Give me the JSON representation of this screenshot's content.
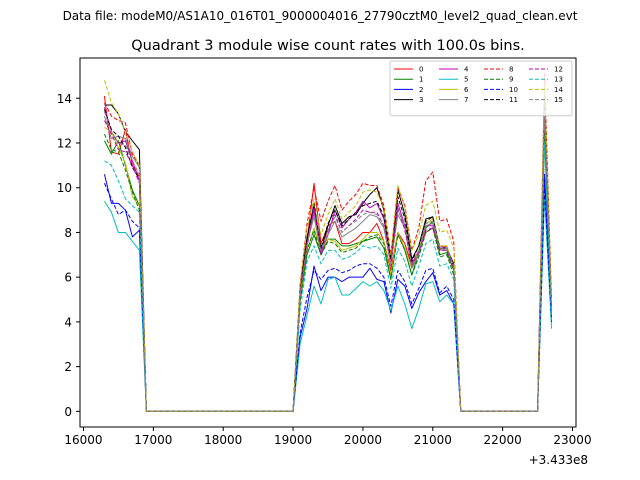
{
  "suptitle": "Data file: modeM0/AS1A10_016T01_9000004016_27790cztM0_level2_quad_clean.evt",
  "chart_data": {
    "type": "line",
    "title": "Quadrant 3 module wise count rates with 100.0s bins.",
    "xlabel": "",
    "ylabel": "",
    "x_offset_label": "+3.433e8",
    "xlim": [
      15950,
      23050
    ],
    "ylim": [
      -0.7,
      15.8
    ],
    "xticks": [
      16000,
      17000,
      18000,
      19000,
      20000,
      21000,
      22000,
      23000
    ],
    "yticks": [
      0,
      2,
      4,
      6,
      8,
      10,
      12,
      14
    ],
    "grid": false,
    "legend_position": "top-right",
    "legend_columns": 4,
    "x": [
      16300,
      16400,
      16500,
      16600,
      16700,
      16800,
      16900,
      17000,
      17100,
      17200,
      17300,
      17400,
      17500,
      17600,
      17700,
      17800,
      17900,
      18000,
      18100,
      18200,
      18300,
      18400,
      18500,
      18600,
      18700,
      18800,
      18900,
      19000,
      19100,
      19200,
      19300,
      19400,
      19500,
      19600,
      19700,
      19800,
      19900,
      20000,
      20100,
      20200,
      20300,
      20400,
      20500,
      20600,
      20700,
      20800,
      20900,
      21000,
      21100,
      21200,
      21300,
      21400,
      21500,
      21600,
      21700,
      21800,
      21900,
      22000,
      22100,
      22200,
      22300,
      22400,
      22500,
      22600,
      22700
    ],
    "series": [
      {
        "name": "0",
        "color": "#ff0000",
        "dash": "solid",
        "values": [
          14.1,
          11.6,
          11.5,
          12.6,
          11.0,
          10.5,
          0.0,
          0.0,
          0.0,
          0.0,
          0.0,
          0.0,
          0.0,
          0.0,
          0.0,
          0.0,
          0.0,
          0.0,
          0.0,
          0.0,
          0.0,
          0.0,
          0.0,
          0.0,
          0.0,
          0.0,
          0.0,
          0.0,
          5.2,
          7.6,
          10.2,
          7.5,
          8.3,
          8.5,
          7.5,
          7.5,
          7.7,
          8.0,
          8.0,
          8.4,
          7.6,
          6.3,
          8.0,
          7.5,
          6.5,
          7.2,
          8.0,
          8.2,
          7.2,
          7.4,
          6.4,
          0.0,
          0.0,
          0.0,
          0.0,
          0.0,
          0.0,
          0.0,
          0.0,
          0.0,
          0.0,
          0.0,
          0.0,
          13.0,
          4.5
        ]
      },
      {
        "name": "1",
        "color": "#008000",
        "dash": "solid",
        "values": [
          12.1,
          11.5,
          12.1,
          11.0,
          9.9,
          9.2,
          0.0,
          0.0,
          0.0,
          0.0,
          0.0,
          0.0,
          0.0,
          0.0,
          0.0,
          0.0,
          0.0,
          0.0,
          0.0,
          0.0,
          0.0,
          0.0,
          0.0,
          0.0,
          0.0,
          0.0,
          0.0,
          0.0,
          4.9,
          7.0,
          7.9,
          7.0,
          7.7,
          7.7,
          7.4,
          7.4,
          7.5,
          7.6,
          7.7,
          7.8,
          7.3,
          5.9,
          8.0,
          7.2,
          6.1,
          7.1,
          8.2,
          8.5,
          7.0,
          7.1,
          6.3,
          0.0,
          0.0,
          0.0,
          0.0,
          0.0,
          0.0,
          0.0,
          0.0,
          0.0,
          0.0,
          0.0,
          0.0,
          12.4,
          4.3
        ]
      },
      {
        "name": "2",
        "color": "#0000ff",
        "dash": "solid",
        "values": [
          10.6,
          9.3,
          9.3,
          9.0,
          7.8,
          8.1,
          0.0,
          0.0,
          0.0,
          0.0,
          0.0,
          0.0,
          0.0,
          0.0,
          0.0,
          0.0,
          0.0,
          0.0,
          0.0,
          0.0,
          0.0,
          0.0,
          0.0,
          0.0,
          0.0,
          0.0,
          0.0,
          0.0,
          3.3,
          4.6,
          6.5,
          5.4,
          6.0,
          6.0,
          5.8,
          6.0,
          6.0,
          6.0,
          6.4,
          5.9,
          5.8,
          4.4,
          5.9,
          5.6,
          4.6,
          5.3,
          5.8,
          6.2,
          5.2,
          5.4,
          4.8,
          0.0,
          0.0,
          0.0,
          0.0,
          0.0,
          0.0,
          0.0,
          0.0,
          0.0,
          0.0,
          0.0,
          0.0,
          10.6,
          4.0
        ]
      },
      {
        "name": "3",
        "color": "#000000",
        "dash": "solid",
        "values": [
          13.7,
          13.7,
          13.3,
          12.5,
          12.1,
          11.7,
          0.0,
          0.0,
          0.0,
          0.0,
          0.0,
          0.0,
          0.0,
          0.0,
          0.0,
          0.0,
          0.0,
          0.0,
          0.0,
          0.0,
          0.0,
          0.0,
          0.0,
          0.0,
          0.0,
          0.0,
          0.0,
          0.0,
          5.5,
          7.8,
          9.2,
          7.2,
          8.3,
          9.2,
          8.4,
          8.7,
          8.8,
          9.3,
          9.7,
          10.0,
          9.0,
          6.9,
          9.9,
          8.8,
          6.8,
          7.4,
          8.6,
          8.7,
          7.3,
          7.3,
          6.6,
          0.0,
          0.0,
          0.0,
          0.0,
          0.0,
          0.0,
          0.0,
          0.0,
          0.0,
          0.0,
          0.0,
          0.0,
          14.1,
          4.7
        ]
      },
      {
        "name": "4",
        "color": "#bf00bf",
        "dash": "solid",
        "values": [
          13.6,
          12.5,
          12.0,
          12.1,
          11.2,
          10.3,
          0.0,
          0.0,
          0.0,
          0.0,
          0.0,
          0.0,
          0.0,
          0.0,
          0.0,
          0.0,
          0.0,
          0.0,
          0.0,
          0.0,
          0.0,
          0.0,
          0.0,
          0.0,
          0.0,
          0.0,
          0.0,
          0.0,
          5.4,
          7.4,
          9.0,
          7.0,
          7.9,
          9.0,
          8.2,
          8.6,
          8.9,
          9.4,
          9.1,
          9.3,
          8.6,
          6.7,
          9.3,
          8.3,
          6.6,
          7.2,
          8.3,
          8.3,
          7.4,
          7.3,
          6.5,
          0.0,
          0.0,
          0.0,
          0.0,
          0.0,
          0.0,
          0.0,
          0.0,
          0.0,
          0.0,
          0.0,
          0.0,
          13.8,
          4.6
        ]
      },
      {
        "name": "5",
        "color": "#00bfbf",
        "dash": "solid",
        "values": [
          9.4,
          8.9,
          8.0,
          8.0,
          7.6,
          7.2,
          0.0,
          0.0,
          0.0,
          0.0,
          0.0,
          0.0,
          0.0,
          0.0,
          0.0,
          0.0,
          0.0,
          0.0,
          0.0,
          0.0,
          0.0,
          0.0,
          0.0,
          0.0,
          0.0,
          0.0,
          0.0,
          0.0,
          3.0,
          4.3,
          5.6,
          4.8,
          5.9,
          6.0,
          5.2,
          5.2,
          5.5,
          5.8,
          5.6,
          5.8,
          5.4,
          4.5,
          5.6,
          4.8,
          3.7,
          4.6,
          5.7,
          5.8,
          4.9,
          5.2,
          4.8,
          0.0,
          0.0,
          0.0,
          0.0,
          0.0,
          0.0,
          0.0,
          0.0,
          0.0,
          0.0,
          0.0,
          0.0,
          9.6,
          3.7
        ]
      },
      {
        "name": "6",
        "color": "#bfbf00",
        "dash": "solid",
        "values": [
          12.7,
          12.5,
          11.8,
          11.1,
          9.6,
          9.2,
          0.0,
          0.0,
          0.0,
          0.0,
          0.0,
          0.0,
          0.0,
          0.0,
          0.0,
          0.0,
          0.0,
          0.0,
          0.0,
          0.0,
          0.0,
          0.0,
          0.0,
          0.0,
          0.0,
          0.0,
          0.0,
          0.0,
          5.1,
          7.2,
          8.2,
          7.2,
          7.7,
          7.6,
          7.2,
          7.3,
          7.4,
          7.7,
          8.0,
          8.0,
          7.6,
          6.1,
          8.0,
          7.3,
          6.4,
          7.2,
          8.4,
          8.6,
          7.4,
          7.4,
          6.4,
          0.0,
          0.0,
          0.0,
          0.0,
          0.0,
          0.0,
          0.0,
          0.0,
          0.0,
          0.0,
          0.0,
          0.0,
          12.8,
          4.4
        ]
      },
      {
        "name": "7",
        "color": "#808080",
        "dash": "solid",
        "values": [
          13.2,
          12.2,
          12.3,
          12.2,
          11.4,
          10.9,
          0.0,
          0.0,
          0.0,
          0.0,
          0.0,
          0.0,
          0.0,
          0.0,
          0.0,
          0.0,
          0.0,
          0.0,
          0.0,
          0.0,
          0.0,
          0.0,
          0.0,
          0.0,
          0.0,
          0.0,
          0.0,
          0.0,
          5.2,
          7.5,
          8.7,
          7.1,
          7.9,
          8.5,
          7.8,
          8.0,
          8.2,
          8.5,
          8.8,
          8.7,
          8.2,
          6.6,
          8.8,
          8.2,
          6.4,
          7.0,
          8.3,
          8.4,
          7.3,
          7.2,
          6.5,
          0.0,
          0.0,
          0.0,
          0.0,
          0.0,
          0.0,
          0.0,
          0.0,
          0.0,
          0.0,
          0.0,
          0.0,
          13.2,
          4.4
        ]
      },
      {
        "name": "8",
        "color": "#ff0000",
        "dash": "dashed",
        "values": [
          13.8,
          13.2,
          13.0,
          12.9,
          11.5,
          11.0,
          0.0,
          0.0,
          0.0,
          0.0,
          0.0,
          0.0,
          0.0,
          0.0,
          0.0,
          0.0,
          0.0,
          0.0,
          0.0,
          0.0,
          0.0,
          0.0,
          0.0,
          0.0,
          0.0,
          0.0,
          0.0,
          0.0,
          5.6,
          8.4,
          10.0,
          8.5,
          9.4,
          10.1,
          9.0,
          9.4,
          9.7,
          10.2,
          10.1,
          10.1,
          9.2,
          7.0,
          10.0,
          9.2,
          7.2,
          8.2,
          10.3,
          10.7,
          8.5,
          8.6,
          7.6,
          0.0,
          0.0,
          0.0,
          0.0,
          0.0,
          0.0,
          0.0,
          0.0,
          0.0,
          0.0,
          0.0,
          0.0,
          15.1,
          5.0
        ]
      },
      {
        "name": "9",
        "color": "#008000",
        "dash": "dashed",
        "values": [
          12.4,
          11.7,
          11.6,
          10.8,
          9.8,
          9.0,
          0.0,
          0.0,
          0.0,
          0.0,
          0.0,
          0.0,
          0.0,
          0.0,
          0.0,
          0.0,
          0.0,
          0.0,
          0.0,
          0.0,
          0.0,
          0.0,
          0.0,
          0.0,
          0.0,
          0.0,
          0.0,
          0.0,
          4.9,
          7.2,
          8.1,
          7.0,
          7.6,
          7.5,
          7.1,
          7.2,
          7.3,
          7.6,
          7.8,
          7.9,
          7.5,
          5.9,
          7.9,
          7.2,
          6.1,
          6.9,
          8.0,
          8.2,
          6.9,
          7.0,
          6.1,
          0.0,
          0.0,
          0.0,
          0.0,
          0.0,
          0.0,
          0.0,
          0.0,
          0.0,
          0.0,
          0.0,
          0.0,
          12.5,
          4.2
        ]
      },
      {
        "name": "10",
        "color": "#0000ff",
        "dash": "dashed",
        "values": [
          10.2,
          9.5,
          8.8,
          9.0,
          8.5,
          8.2,
          0.0,
          0.0,
          0.0,
          0.0,
          0.0,
          0.0,
          0.0,
          0.0,
          0.0,
          0.0,
          0.0,
          0.0,
          0.0,
          0.0,
          0.0,
          0.0,
          0.0,
          0.0,
          0.0,
          0.0,
          0.0,
          0.0,
          3.5,
          5.1,
          6.3,
          5.9,
          6.3,
          6.4,
          6.2,
          6.3,
          6.5,
          6.6,
          6.6,
          6.4,
          6.0,
          4.7,
          6.3,
          5.8,
          4.8,
          5.5,
          6.3,
          6.4,
          5.3,
          5.6,
          5.0,
          0.0,
          0.0,
          0.0,
          0.0,
          0.0,
          0.0,
          0.0,
          0.0,
          0.0,
          0.0,
          0.0,
          0.0,
          10.1,
          4.0
        ]
      },
      {
        "name": "11",
        "color": "#000000",
        "dash": "dashed",
        "values": [
          13.5,
          12.6,
          12.3,
          11.8,
          10.9,
          10.4,
          0.0,
          0.0,
          0.0,
          0.0,
          0.0,
          0.0,
          0.0,
          0.0,
          0.0,
          0.0,
          0.0,
          0.0,
          0.0,
          0.0,
          0.0,
          0.0,
          0.0,
          0.0,
          0.0,
          0.0,
          0.0,
          0.0,
          5.3,
          7.7,
          9.3,
          7.3,
          8.4,
          9.0,
          8.3,
          8.6,
          8.9,
          9.2,
          9.3,
          9.4,
          8.7,
          6.8,
          9.6,
          8.6,
          6.7,
          7.4,
          8.5,
          8.7,
          7.3,
          7.3,
          6.5,
          0.0,
          0.0,
          0.0,
          0.0,
          0.0,
          0.0,
          0.0,
          0.0,
          0.0,
          0.0,
          0.0,
          0.0,
          13.9,
          4.5
        ]
      },
      {
        "name": "12",
        "color": "#bf00bf",
        "dash": "dashed",
        "values": [
          13.0,
          12.4,
          11.7,
          11.6,
          11.0,
          10.2,
          0.0,
          0.0,
          0.0,
          0.0,
          0.0,
          0.0,
          0.0,
          0.0,
          0.0,
          0.0,
          0.0,
          0.0,
          0.0,
          0.0,
          0.0,
          0.0,
          0.0,
          0.0,
          0.0,
          0.0,
          0.0,
          0.0,
          5.3,
          7.4,
          9.1,
          7.1,
          8.1,
          8.8,
          8.0,
          8.3,
          8.6,
          9.0,
          8.9,
          8.9,
          8.3,
          6.5,
          9.1,
          8.1,
          6.5,
          7.1,
          8.1,
          8.2,
          7.2,
          7.2,
          6.4,
          0.0,
          0.0,
          0.0,
          0.0,
          0.0,
          0.0,
          0.0,
          0.0,
          0.0,
          0.0,
          0.0,
          0.0,
          13.5,
          4.5
        ]
      },
      {
        "name": "13",
        "color": "#00bfbf",
        "dash": "dashed",
        "values": [
          11.2,
          11.0,
          10.3,
          9.5,
          9.2,
          8.9,
          0.0,
          0.0,
          0.0,
          0.0,
          0.0,
          0.0,
          0.0,
          0.0,
          0.0,
          0.0,
          0.0,
          0.0,
          0.0,
          0.0,
          0.0,
          0.0,
          0.0,
          0.0,
          0.0,
          0.0,
          0.0,
          0.0,
          4.5,
          6.7,
          7.4,
          6.6,
          7.2,
          7.2,
          6.8,
          6.9,
          7.1,
          7.4,
          7.3,
          7.4,
          7.0,
          5.5,
          7.3,
          6.7,
          5.6,
          6.5,
          7.5,
          7.7,
          6.5,
          6.6,
          5.9,
          0.0,
          0.0,
          0.0,
          0.0,
          0.0,
          0.0,
          0.0,
          0.0,
          0.0,
          0.0,
          0.0,
          0.0,
          12.0,
          4.1
        ]
      },
      {
        "name": "14",
        "color": "#bfbf00",
        "dash": "dashed",
        "values": [
          14.8,
          13.8,
          13.3,
          12.5,
          11.6,
          11.0,
          0.0,
          0.0,
          0.0,
          0.0,
          0.0,
          0.0,
          0.0,
          0.0,
          0.0,
          0.0,
          0.0,
          0.0,
          0.0,
          0.0,
          0.0,
          0.0,
          0.0,
          0.0,
          0.0,
          0.0,
          0.0,
          0.0,
          5.7,
          8.2,
          9.5,
          7.9,
          8.8,
          9.5,
          8.6,
          8.9,
          9.2,
          9.8,
          9.9,
          9.8,
          9.1,
          7.0,
          10.1,
          9.1,
          7.2,
          7.9,
          9.2,
          9.4,
          8.0,
          8.1,
          7.3,
          0.0,
          0.0,
          0.0,
          0.0,
          0.0,
          0.0,
          0.0,
          0.0,
          0.0,
          0.0,
          0.0,
          0.0,
          14.6,
          4.9
        ]
      },
      {
        "name": "15",
        "color": "#808080",
        "dash": "dashed",
        "values": [
          13.4,
          12.5,
          12.0,
          11.9,
          11.2,
          10.6,
          0.0,
          0.0,
          0.0,
          0.0,
          0.0,
          0.0,
          0.0,
          0.0,
          0.0,
          0.0,
          0.0,
          0.0,
          0.0,
          0.0,
          0.0,
          0.0,
          0.0,
          0.0,
          0.0,
          0.0,
          0.0,
          0.0,
          5.2,
          7.5,
          8.8,
          7.2,
          8.1,
          8.7,
          8.0,
          8.3,
          8.5,
          8.8,
          8.9,
          8.8,
          8.3,
          6.6,
          9.0,
          8.3,
          6.5,
          7.2,
          8.4,
          8.5,
          7.3,
          7.3,
          6.5,
          0.0,
          0.0,
          0.0,
          0.0,
          0.0,
          0.0,
          0.0,
          0.0,
          0.0,
          0.0,
          0.0,
          0.0,
          13.4,
          4.5
        ]
      }
    ]
  }
}
